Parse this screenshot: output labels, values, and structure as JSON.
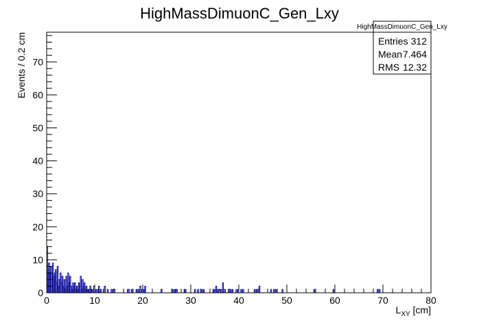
{
  "chart_data": {
    "type": "histogram",
    "title": "HighMassDimuonC_Gen_Lxy",
    "xlabel_main": "L",
    "xlabel_sub": "XY",
    "xlabel_unit": " [cm]",
    "ylabel": "Events / 0.2 cm",
    "xlim": [
      0,
      80
    ],
    "ylim": [
      0,
      79
    ],
    "bin_width": 0.2,
    "x_ticks": [
      "0",
      "10",
      "20",
      "30",
      "40",
      "50",
      "60",
      "70",
      "80"
    ],
    "y_ticks": [
      "0",
      "10",
      "20",
      "30",
      "40",
      "50",
      "60",
      "70"
    ],
    "line_color": "#000099",
    "stats": {
      "name": "HighMassDimuonC_Gen_Lxy",
      "rows": [
        {
          "label": "Entries",
          "value": "312"
        },
        {
          "label": "Mean",
          "value": "7.464"
        },
        {
          "label": "RMS",
          "value": "12.32"
        }
      ]
    },
    "bins": [
      [
        0.0,
        14
      ],
      [
        0.2,
        7
      ],
      [
        0.4,
        9
      ],
      [
        0.6,
        6
      ],
      [
        0.8,
        8
      ],
      [
        1.0,
        6
      ],
      [
        1.2,
        9
      ],
      [
        1.4,
        5
      ],
      [
        1.6,
        6
      ],
      [
        1.8,
        7
      ],
      [
        2.0,
        3
      ],
      [
        2.2,
        8
      ],
      [
        2.4,
        2
      ],
      [
        2.6,
        4
      ],
      [
        2.8,
        6
      ],
      [
        3.0,
        3
      ],
      [
        3.2,
        5
      ],
      [
        3.4,
        2
      ],
      [
        3.6,
        4
      ],
      [
        3.8,
        1
      ],
      [
        4.0,
        5
      ],
      [
        4.2,
        2
      ],
      [
        4.4,
        6
      ],
      [
        4.6,
        3
      ],
      [
        4.8,
        5
      ],
      [
        5.0,
        2
      ],
      [
        5.2,
        1
      ],
      [
        5.4,
        3
      ],
      [
        5.6,
        2
      ],
      [
        5.8,
        3
      ],
      [
        6.0,
        1
      ],
      [
        6.2,
        2
      ],
      [
        6.4,
        1
      ],
      [
        6.6,
        3
      ],
      [
        6.8,
        2
      ],
      [
        7.0,
        5
      ],
      [
        7.2,
        1
      ],
      [
        7.4,
        4
      ],
      [
        7.6,
        2
      ],
      [
        7.8,
        3
      ],
      [
        8.0,
        1
      ],
      [
        8.2,
        2
      ],
      [
        8.4,
        1
      ],
      [
        8.6,
        1
      ],
      [
        8.8,
        1
      ],
      [
        9.0,
        2
      ],
      [
        9.2,
        1
      ],
      [
        9.4,
        1
      ],
      [
        9.8,
        2
      ],
      [
        10.2,
        1
      ],
      [
        10.6,
        1
      ],
      [
        10.8,
        2
      ],
      [
        11.2,
        1
      ],
      [
        11.8,
        1
      ],
      [
        12.0,
        2
      ],
      [
        12.6,
        1
      ],
      [
        13.4,
        1
      ],
      [
        13.8,
        1
      ],
      [
        14.0,
        1
      ],
      [
        16.8,
        1
      ],
      [
        17.0,
        1
      ],
      [
        17.6,
        1
      ],
      [
        18.6,
        1
      ],
      [
        19.0,
        1
      ],
      [
        19.4,
        2
      ],
      [
        19.8,
        1
      ],
      [
        20.2,
        1
      ],
      [
        20.4,
        2
      ],
      [
        23.8,
        1
      ],
      [
        26.2,
        1
      ],
      [
        26.6,
        1
      ],
      [
        26.8,
        1
      ],
      [
        27.0,
        1
      ],
      [
        28.6,
        1
      ],
      [
        28.8,
        1
      ],
      [
        30.8,
        1
      ],
      [
        31.4,
        1
      ],
      [
        32.2,
        1
      ],
      [
        32.6,
        1
      ],
      [
        34.6,
        1
      ],
      [
        34.8,
        1
      ],
      [
        35.2,
        2
      ],
      [
        35.4,
        1
      ],
      [
        35.8,
        1
      ],
      [
        36.2,
        1
      ],
      [
        36.6,
        3
      ],
      [
        37.0,
        1
      ],
      [
        37.8,
        1
      ],
      [
        38.2,
        1
      ],
      [
        38.6,
        1
      ],
      [
        39.4,
        1
      ],
      [
        39.8,
        1
      ],
      [
        40.4,
        1
      ],
      [
        40.8,
        1
      ],
      [
        43.2,
        1
      ],
      [
        43.6,
        1
      ],
      [
        44.2,
        2
      ],
      [
        46.6,
        1
      ],
      [
        47.2,
        1
      ],
      [
        47.6,
        1
      ],
      [
        49.0,
        1
      ],
      [
        55.6,
        1
      ],
      [
        59.6,
        1
      ],
      [
        68.8,
        1
      ],
      [
        69.2,
        1
      ]
    ]
  }
}
